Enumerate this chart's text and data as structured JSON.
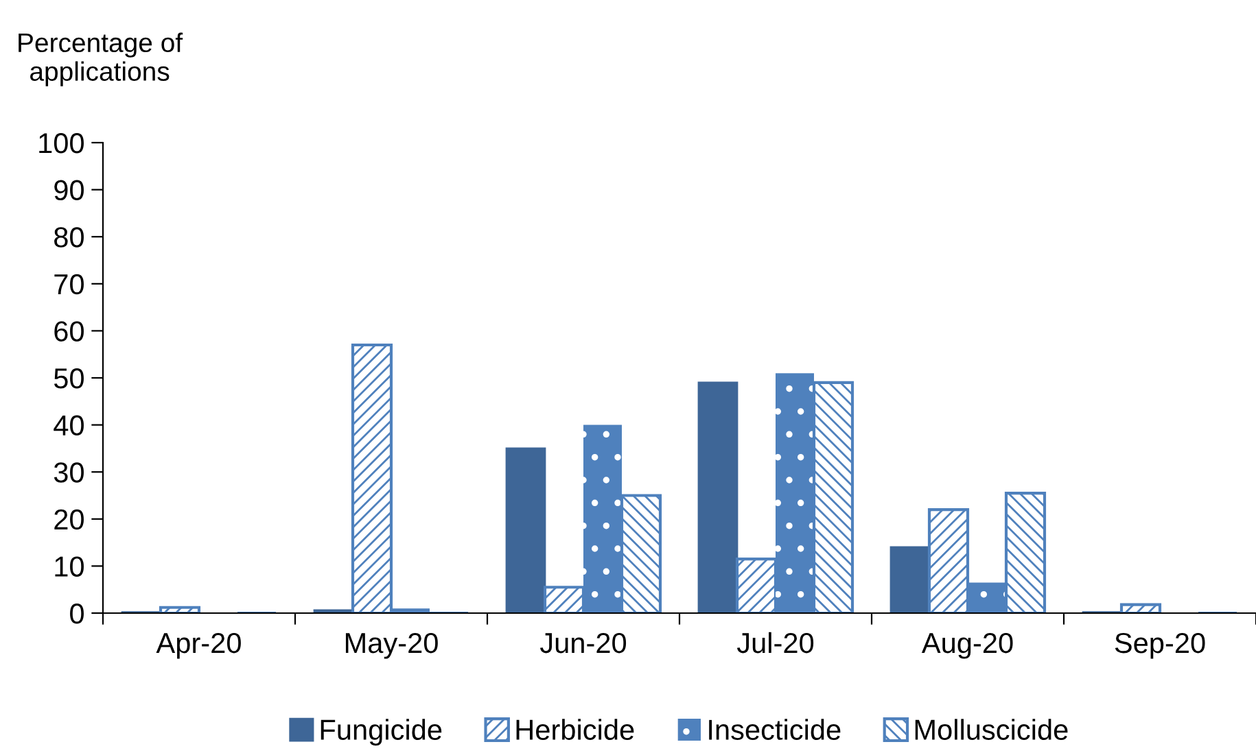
{
  "chart_data": {
    "type": "bar",
    "ylabel": "Percentage of\napplications",
    "categories": [
      "Apr-20",
      "May-20",
      "Jun-20",
      "Jul-20",
      "Aug-20",
      "Sep-20"
    ],
    "series": [
      {
        "name": "Fungicide",
        "color": "#3e6697",
        "values": [
          0.2,
          0.6,
          35,
          49,
          14,
          0.2
        ]
      },
      {
        "name": "Herbicide",
        "color": "#4f81bd",
        "values": [
          1.2,
          57,
          5.5,
          11.5,
          22,
          1.8
        ]
      },
      {
        "name": "Insecticide",
        "color": "#4f81bd",
        "values": [
          0,
          1,
          40,
          51,
          6.5,
          0
        ]
      },
      {
        "name": "Molluscicide",
        "color": "#4f81bd",
        "values": [
          0,
          0,
          25,
          49,
          25.5,
          0
        ]
      }
    ],
    "ylim": [
      0,
      100
    ],
    "yticks": [
      0,
      10,
      20,
      30,
      40,
      50,
      60,
      70,
      80,
      90,
      100
    ],
    "grid": false,
    "legend": "bottom"
  }
}
